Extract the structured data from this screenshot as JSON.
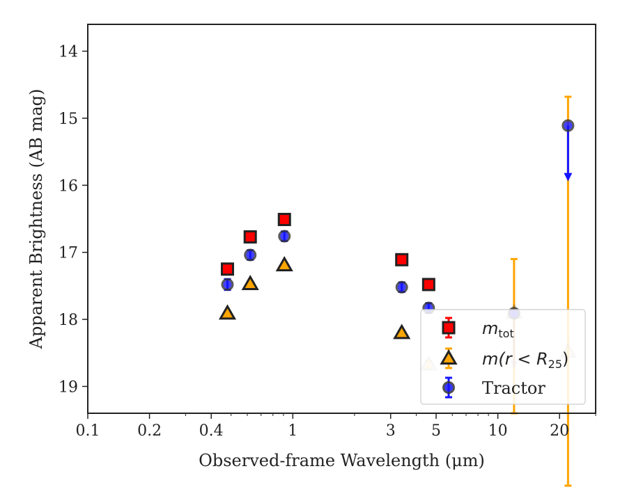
{
  "chart_data": {
    "type": "scatter",
    "xlabel": "Observed-frame Wavelength (μm)",
    "ylabel": "Apparent Brightness (AB mag)",
    "xscale": "log",
    "xlim": [
      0.1,
      30
    ],
    "ylim": [
      19.4,
      13.6
    ],
    "y_inverted": true,
    "x_ticks": [
      {
        "value": 0.1,
        "label": "0.1"
      },
      {
        "value": 0.2,
        "label": "0.2"
      },
      {
        "value": 0.4,
        "label": "0.4"
      },
      {
        "value": 1,
        "label": "1"
      },
      {
        "value": 3,
        "label": "3"
      },
      {
        "value": 5,
        "label": "5"
      },
      {
        "value": 10,
        "label": "10"
      },
      {
        "value": 20,
        "label": "20"
      }
    ],
    "y_ticks": [
      {
        "value": 14,
        "label": "14"
      },
      {
        "value": 15,
        "label": "15"
      },
      {
        "value": 16,
        "label": "16"
      },
      {
        "value": 17,
        "label": "17"
      },
      {
        "value": 18,
        "label": "18"
      },
      {
        "value": 19,
        "label": "19"
      }
    ],
    "grid": false,
    "legend_position": "lower-right",
    "series": [
      {
        "name": "m_tot",
        "label_main": "m",
        "label_sub": "tot",
        "marker": "square",
        "color": "#ff0000",
        "edge_color": "#222222",
        "errbar_color": "#ff0000",
        "points": [
          {
            "x": 0.48,
            "y": 17.25,
            "err": 0.06
          },
          {
            "x": 0.62,
            "y": 16.77,
            "err": 0.06
          },
          {
            "x": 0.91,
            "y": 16.51,
            "err": 0.07
          },
          {
            "x": 3.4,
            "y": 17.11,
            "err": 0.06
          },
          {
            "x": 4.6,
            "y": 17.48,
            "err": 0.06
          }
        ]
      },
      {
        "name": "m(r < R25)",
        "label_prefix": "m(r < R",
        "label_sub": "25",
        "label_suffix": ")",
        "marker": "triangle",
        "color": "#ffa500",
        "edge_color": "#222222",
        "errbar_color": "#ffa500",
        "points": [
          {
            "x": 0.48,
            "y": 17.91,
            "err": 0.02
          },
          {
            "x": 0.62,
            "y": 17.47,
            "err": 0.02
          },
          {
            "x": 0.91,
            "y": 17.19,
            "err": 0.02
          },
          {
            "x": 3.4,
            "y": 18.2,
            "err": 0.03
          },
          {
            "x": 4.6,
            "y": 18.67,
            "err": 0.05,
            "faded": true
          },
          {
            "x": 12.0,
            "y": 17.9,
            "err_low": 0.8,
            "err_high": 1.5,
            "faded": true
          },
          {
            "x": 22.0,
            "y": 18.48,
            "err_low": 3.8,
            "err_high": 2.0,
            "faded": true
          }
        ]
      },
      {
        "name": "Tractor",
        "marker": "circle",
        "color": "#1414ff",
        "edge_color": "#333333",
        "errbar_color": "#1414ff",
        "points": [
          {
            "x": 0.48,
            "y": 17.48,
            "err": 0.08
          },
          {
            "x": 0.62,
            "y": 17.04,
            "err": 0.07
          },
          {
            "x": 0.91,
            "y": 16.76,
            "err": 0.07
          },
          {
            "x": 3.4,
            "y": 17.52,
            "err": 0.07
          },
          {
            "x": 4.6,
            "y": 17.83,
            "err": 0.07
          },
          {
            "x": 12.0,
            "y": 17.91,
            "upper_limit": true,
            "arrow_to": 18.7,
            "faded_arrow": true
          },
          {
            "x": 22.0,
            "y": 15.11,
            "upper_limit": true,
            "arrow_to": 15.9
          }
        ]
      }
    ]
  }
}
